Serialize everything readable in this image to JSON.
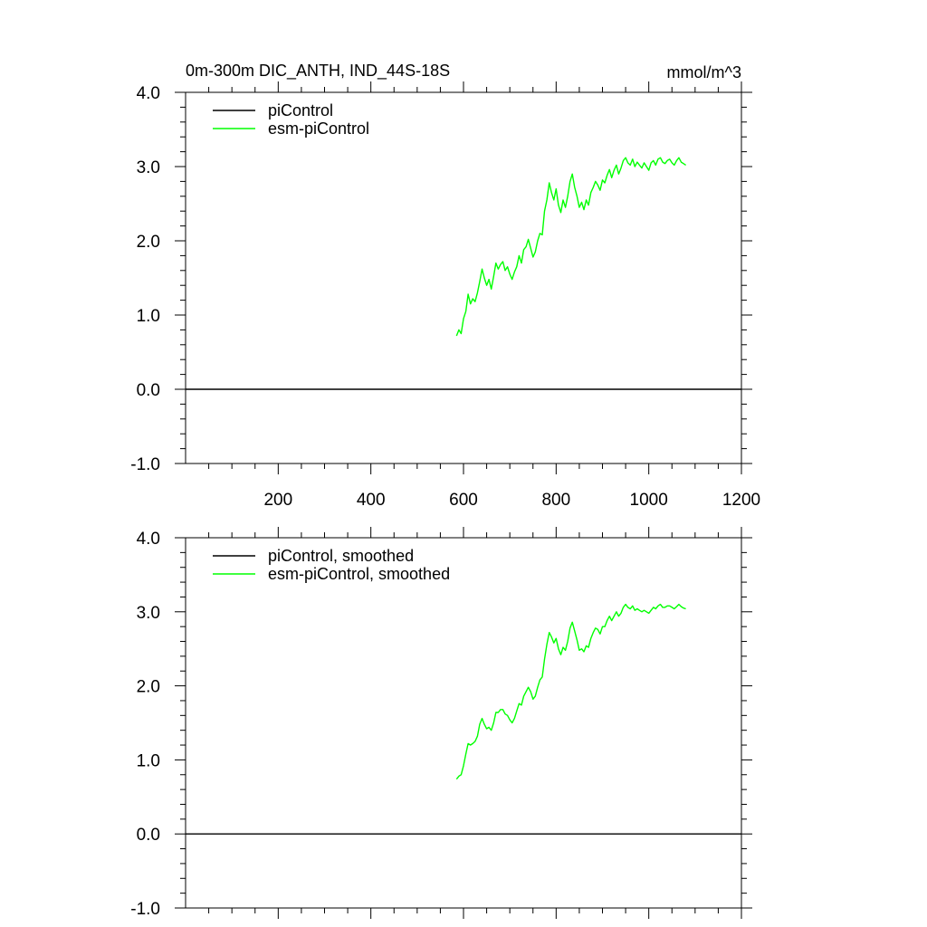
{
  "chart_data": [
    {
      "type": "line",
      "title": "0m-300m DIC_ANTH, IND_44S-18S",
      "units": "mmol/m^3",
      "xlim": [
        0,
        1200
      ],
      "ylim": [
        -1.0,
        4.0
      ],
      "x_ticks": [
        200,
        400,
        600,
        800,
        1000,
        1200
      ],
      "x_tick_labels": [
        "200",
        "400",
        "600",
        "800",
        "1000",
        "1200"
      ],
      "y_ticks": [
        -1.0,
        0.0,
        1.0,
        2.0,
        3.0,
        4.0
      ],
      "y_tick_labels": [
        "-1.0",
        "0.0",
        "1.0",
        "2.0",
        "3.0",
        "4.0"
      ],
      "legend_position": "top-left",
      "series": [
        {
          "name": "piControl",
          "color": "#000000",
          "x": [
            0,
            1200
          ],
          "values": [
            0.0,
            0.0
          ]
        },
        {
          "name": "esm-piControl",
          "color": "#00ff00",
          "x": [
            585,
            590,
            595,
            600,
            605,
            610,
            615,
            620,
            625,
            630,
            635,
            640,
            645,
            650,
            655,
            660,
            665,
            670,
            675,
            680,
            685,
            690,
            695,
            700,
            705,
            710,
            715,
            720,
            725,
            730,
            735,
            740,
            745,
            750,
            755,
            760,
            765,
            770,
            775,
            780,
            785,
            790,
            795,
            800,
            805,
            810,
            815,
            820,
            825,
            830,
            835,
            840,
            845,
            850,
            855,
            860,
            865,
            870,
            875,
            880,
            885,
            890,
            895,
            900,
            905,
            910,
            915,
            920,
            925,
            930,
            935,
            940,
            945,
            950,
            955,
            960,
            965,
            970,
            975,
            980,
            985,
            990,
            995,
            1000,
            1005,
            1010,
            1015,
            1020,
            1025,
            1030,
            1035,
            1040,
            1045,
            1050,
            1055,
            1060,
            1065,
            1070,
            1075,
            1080
          ],
          "values": [
            0.72,
            0.8,
            0.75,
            0.95,
            1.05,
            1.28,
            1.15,
            1.22,
            1.18,
            1.3,
            1.45,
            1.62,
            1.5,
            1.4,
            1.48,
            1.35,
            1.52,
            1.7,
            1.62,
            1.68,
            1.72,
            1.6,
            1.65,
            1.55,
            1.48,
            1.58,
            1.65,
            1.8,
            1.7,
            1.88,
            1.92,
            2.02,
            1.9,
            1.78,
            1.85,
            2.0,
            2.1,
            2.08,
            2.4,
            2.55,
            2.78,
            2.65,
            2.55,
            2.7,
            2.48,
            2.38,
            2.55,
            2.45,
            2.6,
            2.8,
            2.9,
            2.72,
            2.6,
            2.45,
            2.52,
            2.42,
            2.55,
            2.48,
            2.65,
            2.72,
            2.8,
            2.75,
            2.68,
            2.82,
            2.78,
            2.88,
            2.96,
            2.85,
            2.95,
            3.02,
            2.9,
            2.98,
            3.08,
            3.12,
            3.05,
            3.02,
            3.1,
            3.0,
            3.06,
            3.02,
            2.98,
            3.05,
            3.0,
            2.95,
            3.05,
            3.08,
            3.02,
            3.1,
            3.12,
            3.06,
            3.04,
            3.08,
            3.1,
            3.05,
            3.02,
            3.08,
            3.12,
            3.06,
            3.04,
            3.02
          ]
        }
      ]
    },
    {
      "type": "line",
      "title": "",
      "xlim": [
        0,
        1200
      ],
      "ylim": [
        -1.0,
        4.0
      ],
      "x_ticks": [
        200,
        400,
        600,
        800,
        1000,
        1200
      ],
      "y_ticks": [
        -1.0,
        0.0,
        1.0,
        2.0,
        3.0,
        4.0
      ],
      "y_tick_labels": [
        "-1.0",
        "0.0",
        "1.0",
        "2.0",
        "3.0",
        "4.0"
      ],
      "legend_position": "top-left",
      "series": [
        {
          "name": "piControl, smoothed",
          "color": "#000000",
          "x": [
            0,
            1200
          ],
          "values": [
            0.0,
            0.0
          ]
        },
        {
          "name": "esm-piControl, smoothed",
          "color": "#00ff00",
          "x": [
            585,
            590,
            595,
            600,
            605,
            610,
            615,
            620,
            625,
            630,
            635,
            640,
            645,
            650,
            655,
            660,
            665,
            670,
            675,
            680,
            685,
            690,
            695,
            700,
            705,
            710,
            715,
            720,
            725,
            730,
            735,
            740,
            745,
            750,
            755,
            760,
            765,
            770,
            775,
            780,
            785,
            790,
            795,
            800,
            805,
            810,
            815,
            820,
            825,
            830,
            835,
            840,
            845,
            850,
            855,
            860,
            865,
            870,
            875,
            880,
            885,
            890,
            895,
            900,
            905,
            910,
            915,
            920,
            925,
            930,
            935,
            940,
            945,
            950,
            955,
            960,
            965,
            970,
            975,
            980,
            985,
            990,
            995,
            1000,
            1005,
            1010,
            1015,
            1020,
            1025,
            1030,
            1035,
            1040,
            1045,
            1050,
            1055,
            1060,
            1065,
            1070,
            1075,
            1080
          ],
          "values": [
            0.74,
            0.78,
            0.8,
            0.92,
            1.08,
            1.22,
            1.2,
            1.22,
            1.25,
            1.32,
            1.48,
            1.56,
            1.48,
            1.42,
            1.44,
            1.4,
            1.5,
            1.64,
            1.64,
            1.68,
            1.68,
            1.62,
            1.6,
            1.54,
            1.5,
            1.56,
            1.66,
            1.76,
            1.74,
            1.86,
            1.92,
            1.98,
            1.92,
            1.82,
            1.86,
            1.98,
            2.08,
            2.12,
            2.36,
            2.56,
            2.72,
            2.66,
            2.58,
            2.64,
            2.5,
            2.42,
            2.52,
            2.48,
            2.6,
            2.78,
            2.86,
            2.74,
            2.62,
            2.48,
            2.5,
            2.46,
            2.54,
            2.52,
            2.64,
            2.72,
            2.78,
            2.76,
            2.7,
            2.8,
            2.8,
            2.88,
            2.94,
            2.88,
            2.94,
            3.0,
            2.94,
            2.98,
            3.06,
            3.1,
            3.06,
            3.04,
            3.08,
            3.02,
            3.04,
            3.02,
            3.0,
            3.02,
            3.0,
            2.98,
            3.02,
            3.06,
            3.04,
            3.08,
            3.1,
            3.06,
            3.06,
            3.08,
            3.08,
            3.06,
            3.04,
            3.07,
            3.1,
            3.07,
            3.05,
            3.04
          ]
        }
      ]
    }
  ]
}
